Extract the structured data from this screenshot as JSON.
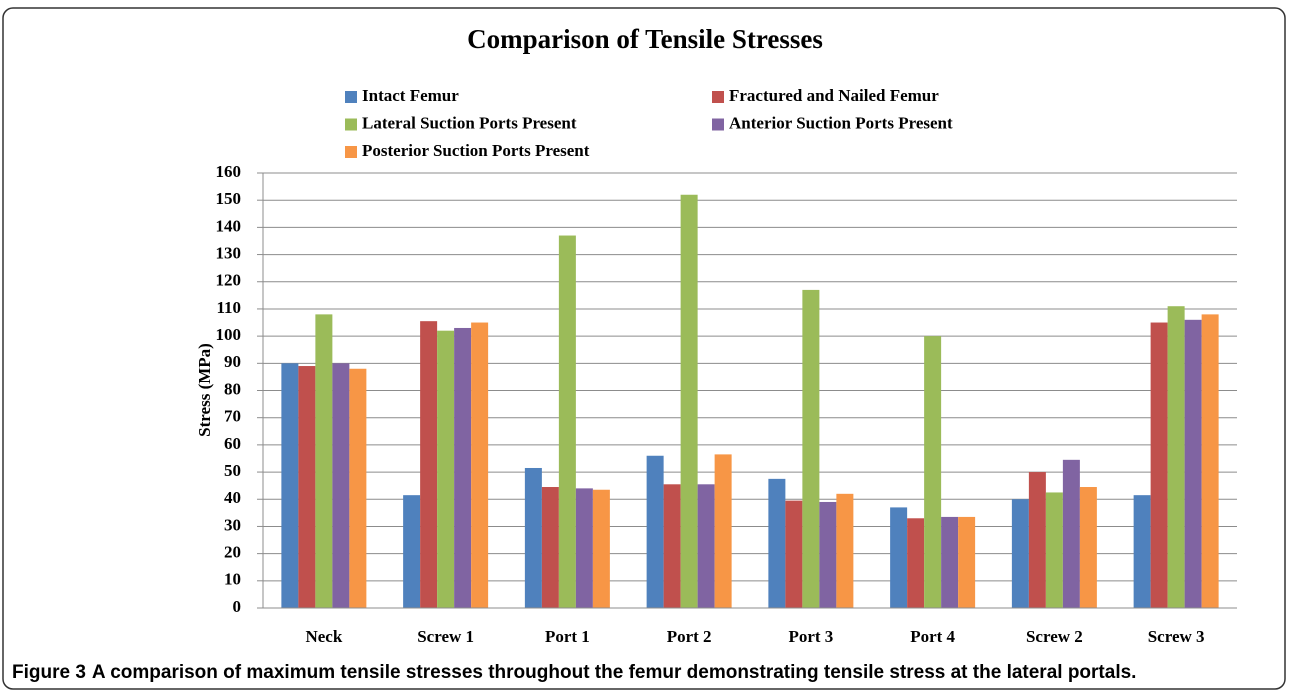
{
  "chart_data": {
    "type": "bar",
    "title": "Comparison of Tensile Stresses",
    "y_label": "Stress (MPa)",
    "categories": [
      "Neck",
      "Screw 1",
      "Port 1",
      "Port 2",
      "Port 3",
      "Port 4",
      "Screw 2",
      "Screw 3"
    ],
    "series": [
      {
        "name": "Intact Femur",
        "color": "#4f81bd",
        "values": [
          90,
          41.5,
          51.5,
          56,
          47.5,
          37,
          40,
          41.5
        ]
      },
      {
        "name": "Fractured and Nailed Femur",
        "color": "#c0504d",
        "values": [
          89,
          105.5,
          44.5,
          45.5,
          39.5,
          33,
          50,
          105
        ]
      },
      {
        "name": "Lateral Suction Ports Present",
        "color": "#9bbb59",
        "values": [
          108,
          102,
          137,
          152,
          117,
          100,
          42.5,
          111
        ]
      },
      {
        "name": "Anterior Suction Ports Present",
        "color": "#8064a2",
        "values": [
          90,
          103,
          44,
          45.5,
          39,
          33.5,
          54.5,
          106
        ]
      },
      {
        "name": "Posterior Suction Ports Present",
        "color": "#f79646",
        "values": [
          88,
          105,
          43.5,
          56.5,
          42,
          33.5,
          44.5,
          108
        ]
      }
    ],
    "ylim": [
      0,
      160
    ],
    "yticks": [
      0,
      10,
      20,
      30,
      40,
      50,
      60,
      70,
      80,
      90,
      100,
      110,
      120,
      130,
      140,
      150,
      160
    ],
    "grid": true,
    "legend": "top"
  },
  "caption": {
    "label": "Figure 3",
    "text": "A comparison of maximum tensile stresses throughout the femur demonstrating tensile stress at the lateral portals."
  }
}
